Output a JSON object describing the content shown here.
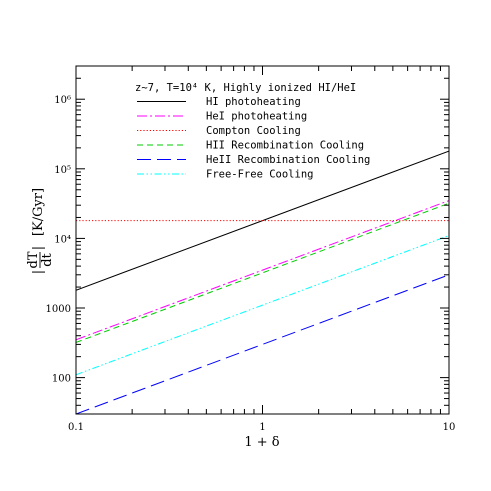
{
  "chart_data": {
    "type": "line",
    "title": "z~7, T=10⁴ K, Highly ionized HI/HeI",
    "xlabel": "1 + δ",
    "ylabel": "|dT/dt| [K/Gyr]",
    "ylabel_parts": {
      "num": "dT",
      "den": "dt",
      "unit": "[K/Gyr]"
    },
    "xscale": "log",
    "yscale": "log",
    "xlim": [
      0.1,
      10
    ],
    "ylim": [
      30,
      3000000
    ],
    "x_ticks": [
      {
        "value": 0.1,
        "label": "0.1"
      },
      {
        "value": 1,
        "label": "1"
      },
      {
        "value": 10,
        "label": "10"
      }
    ],
    "y_ticks": [
      {
        "value": 100,
        "label": "100"
      },
      {
        "value": 1000,
        "label": "1000"
      },
      {
        "value": 10000,
        "label": "10⁴"
      },
      {
        "value": 100000,
        "label": "10⁵"
      },
      {
        "value": 1000000,
        "label": "10⁶"
      }
    ],
    "grid": false,
    "legend_position": "top-left",
    "series": [
      {
        "name": "HI photoheating",
        "color": "#000000",
        "dash": "solid",
        "x": [
          0.1,
          10
        ],
        "y": [
          1800,
          180000
        ]
      },
      {
        "name": "HeI photoheating",
        "color": "#ff00ff",
        "dash": "dashdot",
        "x": [
          0.1,
          10
        ],
        "y": [
          350,
          35000
        ]
      },
      {
        "name": "Compton Cooling",
        "color": "#ff0000",
        "dash": "dotted",
        "x": [
          0.1,
          10
        ],
        "y": [
          18000,
          18000
        ]
      },
      {
        "name": "HII Recombination Cooling",
        "color": "#00cc00",
        "dash": "dashed",
        "x": [
          0.1,
          10
        ],
        "y": [
          320,
          32000
        ]
      },
      {
        "name": "HeII Recombination Cooling",
        "color": "#0000ff",
        "dash": "longdash",
        "x": [
          0.1,
          10
        ],
        "y": [
          30,
          3000
        ]
      },
      {
        "name": "Free-Free Cooling",
        "color": "#00ffff",
        "dash": "dashdotdot",
        "x": [
          0.1,
          10
        ],
        "y": [
          110,
          11000
        ]
      }
    ]
  }
}
